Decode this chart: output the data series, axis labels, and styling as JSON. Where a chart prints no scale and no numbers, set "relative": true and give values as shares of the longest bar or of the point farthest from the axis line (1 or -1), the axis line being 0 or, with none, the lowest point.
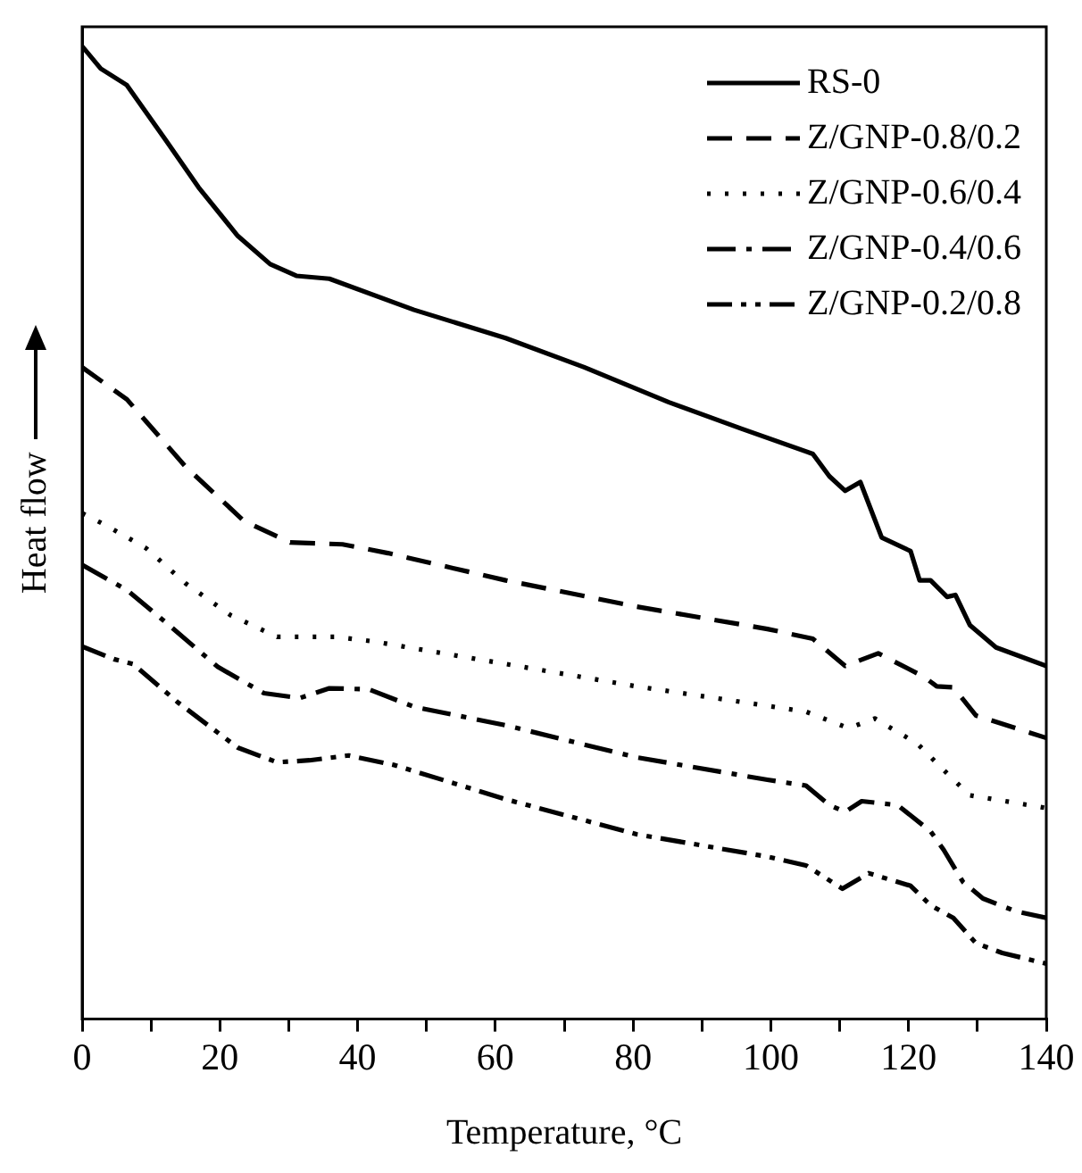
{
  "chart_data": {
    "type": "line",
    "relative": true,
    "xlabel": "Temperature, °C",
    "ylabel": "Heat flow",
    "xlim": [
      0,
      140
    ],
    "xticks": [
      0,
      {
        "value": 10,
        "label": null
      },
      20,
      {
        "value": 30,
        "label": null
      },
      40,
      {
        "value": 50,
        "label": null
      },
      60,
      {
        "value": 70,
        "label": null
      },
      80,
      {
        "value": 90,
        "label": null
      },
      100,
      {
        "value": 110,
        "label": null
      },
      120,
      {
        "value": 130,
        "label": null
      },
      140
    ],
    "grid": false,
    "legend": "top right",
    "series": [
      {
        "name": "RS-0",
        "color": "#000000",
        "line_style": "solid",
        "x": [
          0,
          2.7,
          6.5,
          12.1,
          16.9,
          22.6,
          27.3,
          31.1,
          35.9,
          48.2,
          61.5,
          72.9,
          85.2,
          95.7,
          106.1,
          108.5,
          110.8,
          113.0,
          116.1,
          120.3,
          121.6,
          123.2,
          125.6,
          126.8,
          128.9,
          132.7,
          140
        ],
        "values": [
          1.0,
          0.977,
          0.96,
          0.904,
          0.855,
          0.805,
          0.776,
          0.764,
          0.761,
          0.729,
          0.7,
          0.67,
          0.634,
          0.607,
          0.581,
          0.558,
          0.543,
          0.552,
          0.495,
          0.481,
          0.451,
          0.451,
          0.434,
          0.436,
          0.405,
          0.382,
          0.363
        ]
      },
      {
        "name": "Z/GNP-0.8/0.2",
        "color": "#000000",
        "line_style": "dashed",
        "x": [
          0,
          6.5,
          15,
          23.5,
          30.2,
          37.8,
          44.4,
          61.5,
          80.5,
          99.5,
          106.1,
          110.8,
          115.6,
          122.2,
          124.1,
          126.5,
          129.8,
          140
        ],
        "values": [
          0.67,
          0.637,
          0.568,
          0.512,
          0.49,
          0.488,
          0.479,
          0.451,
          0.424,
          0.401,
          0.391,
          0.363,
          0.376,
          0.352,
          0.342,
          0.341,
          0.312,
          0.289
        ]
      },
      {
        "name": "Z/GNP-0.6/0.4",
        "color": "#000000",
        "line_style": "dotted",
        "x": [
          0,
          3.6,
          9.3,
          15,
          21.6,
          28.3,
          36.8,
          42.5,
          61.5,
          80.5,
          99.5,
          105.1,
          111.3,
          115.1,
          121.3,
          125.1,
          128.9,
          140
        ],
        "values": [
          0.52,
          0.507,
          0.484,
          0.448,
          0.415,
          0.393,
          0.393,
          0.388,
          0.365,
          0.342,
          0.322,
          0.316,
          0.299,
          0.309,
          0.283,
          0.256,
          0.23,
          0.217
        ]
      },
      {
        "name": "Z/GNP-0.4/0.6",
        "color": "#000000",
        "line_style": "dashdot",
        "x": [
          0,
          6.5,
          12.1,
          19.7,
          26.4,
          31.6,
          35.9,
          41.6,
          48.2,
          61.5,
          80.5,
          99.5,
          105.1,
          108.5,
          110.8,
          113.2,
          118.4,
          123.2,
          125.1,
          127.9,
          130.8,
          135.5,
          140
        ],
        "values": [
          0.467,
          0.441,
          0.408,
          0.362,
          0.335,
          0.33,
          0.34,
          0.339,
          0.321,
          0.302,
          0.269,
          0.246,
          0.24,
          0.22,
          0.213,
          0.224,
          0.22,
          0.193,
          0.174,
          0.141,
          0.124,
          0.111,
          0.104
        ]
      },
      {
        "name": "Z/GNP-0.2/0.8",
        "color": "#000000",
        "line_style": "dashdotdot",
        "x": [
          0,
          4.6,
          7.4,
          14,
          22.6,
          28.3,
          33,
          38.7,
          45.4,
          61.5,
          80.5,
          99.5,
          105.1,
          110.4,
          114.2,
          120.3,
          123.2,
          126.5,
          129.8,
          133.6,
          140
        ],
        "values": [
          0.383,
          0.37,
          0.365,
          0.325,
          0.279,
          0.264,
          0.266,
          0.271,
          0.261,
          0.226,
          0.19,
          0.167,
          0.158,
          0.134,
          0.15,
          0.137,
          0.117,
          0.104,
          0.078,
          0.068,
          0.057
        ]
      }
    ]
  }
}
